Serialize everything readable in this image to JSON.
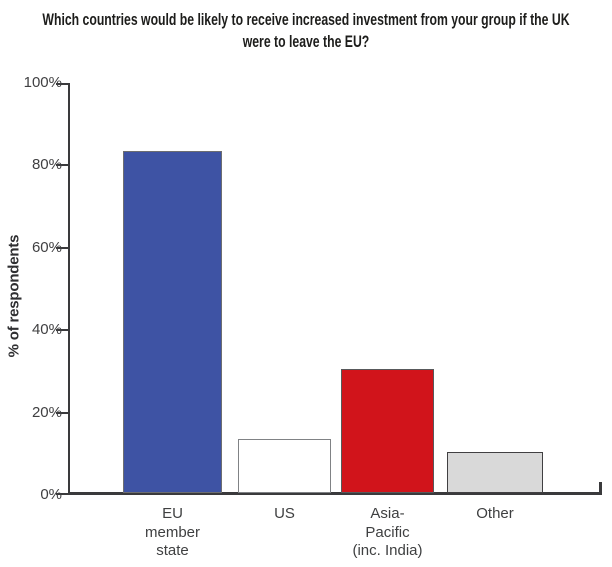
{
  "title_lines": [
    "Which countries would be likely to receive increased investment from your group if the UK",
    "were to leave the EU?"
  ],
  "chart_data": {
    "type": "bar",
    "title": "Which countries would be likely to receive increased investment from your group if the UK were to leave the EU?",
    "xlabel": "",
    "ylabel": "% of respondents",
    "ylim": [
      0,
      100
    ],
    "grid": false,
    "legend_position": "none",
    "ytick_values": [
      0,
      20,
      40,
      60,
      80,
      100
    ],
    "ytick_labels": [
      "0%",
      "20%",
      "40%",
      "60%",
      "80%",
      "100%"
    ],
    "categories": [
      "EU member state",
      "US",
      "Asia-Pacific (inc. India)",
      "Other"
    ],
    "category_label_lines": [
      [
        "EU",
        "member",
        "state"
      ],
      [
        "US"
      ],
      [
        "Asia-",
        "Pacific",
        "(inc. India)"
      ],
      [
        "Other"
      ]
    ],
    "values": [
      83,
      13,
      30,
      10
    ],
    "bar_colors": [
      "#3e53a4",
      "#ffffff",
      "#d1141b",
      "#d9d9d9"
    ],
    "bar_border_colors": [
      "#6d6e71",
      "#808285",
      "#58595b",
      "#414042"
    ]
  },
  "colors": {
    "axis": "#3a3a3c",
    "tick_text": "#404042",
    "title_text": "#1d1d1b",
    "background": "#ffffff"
  }
}
